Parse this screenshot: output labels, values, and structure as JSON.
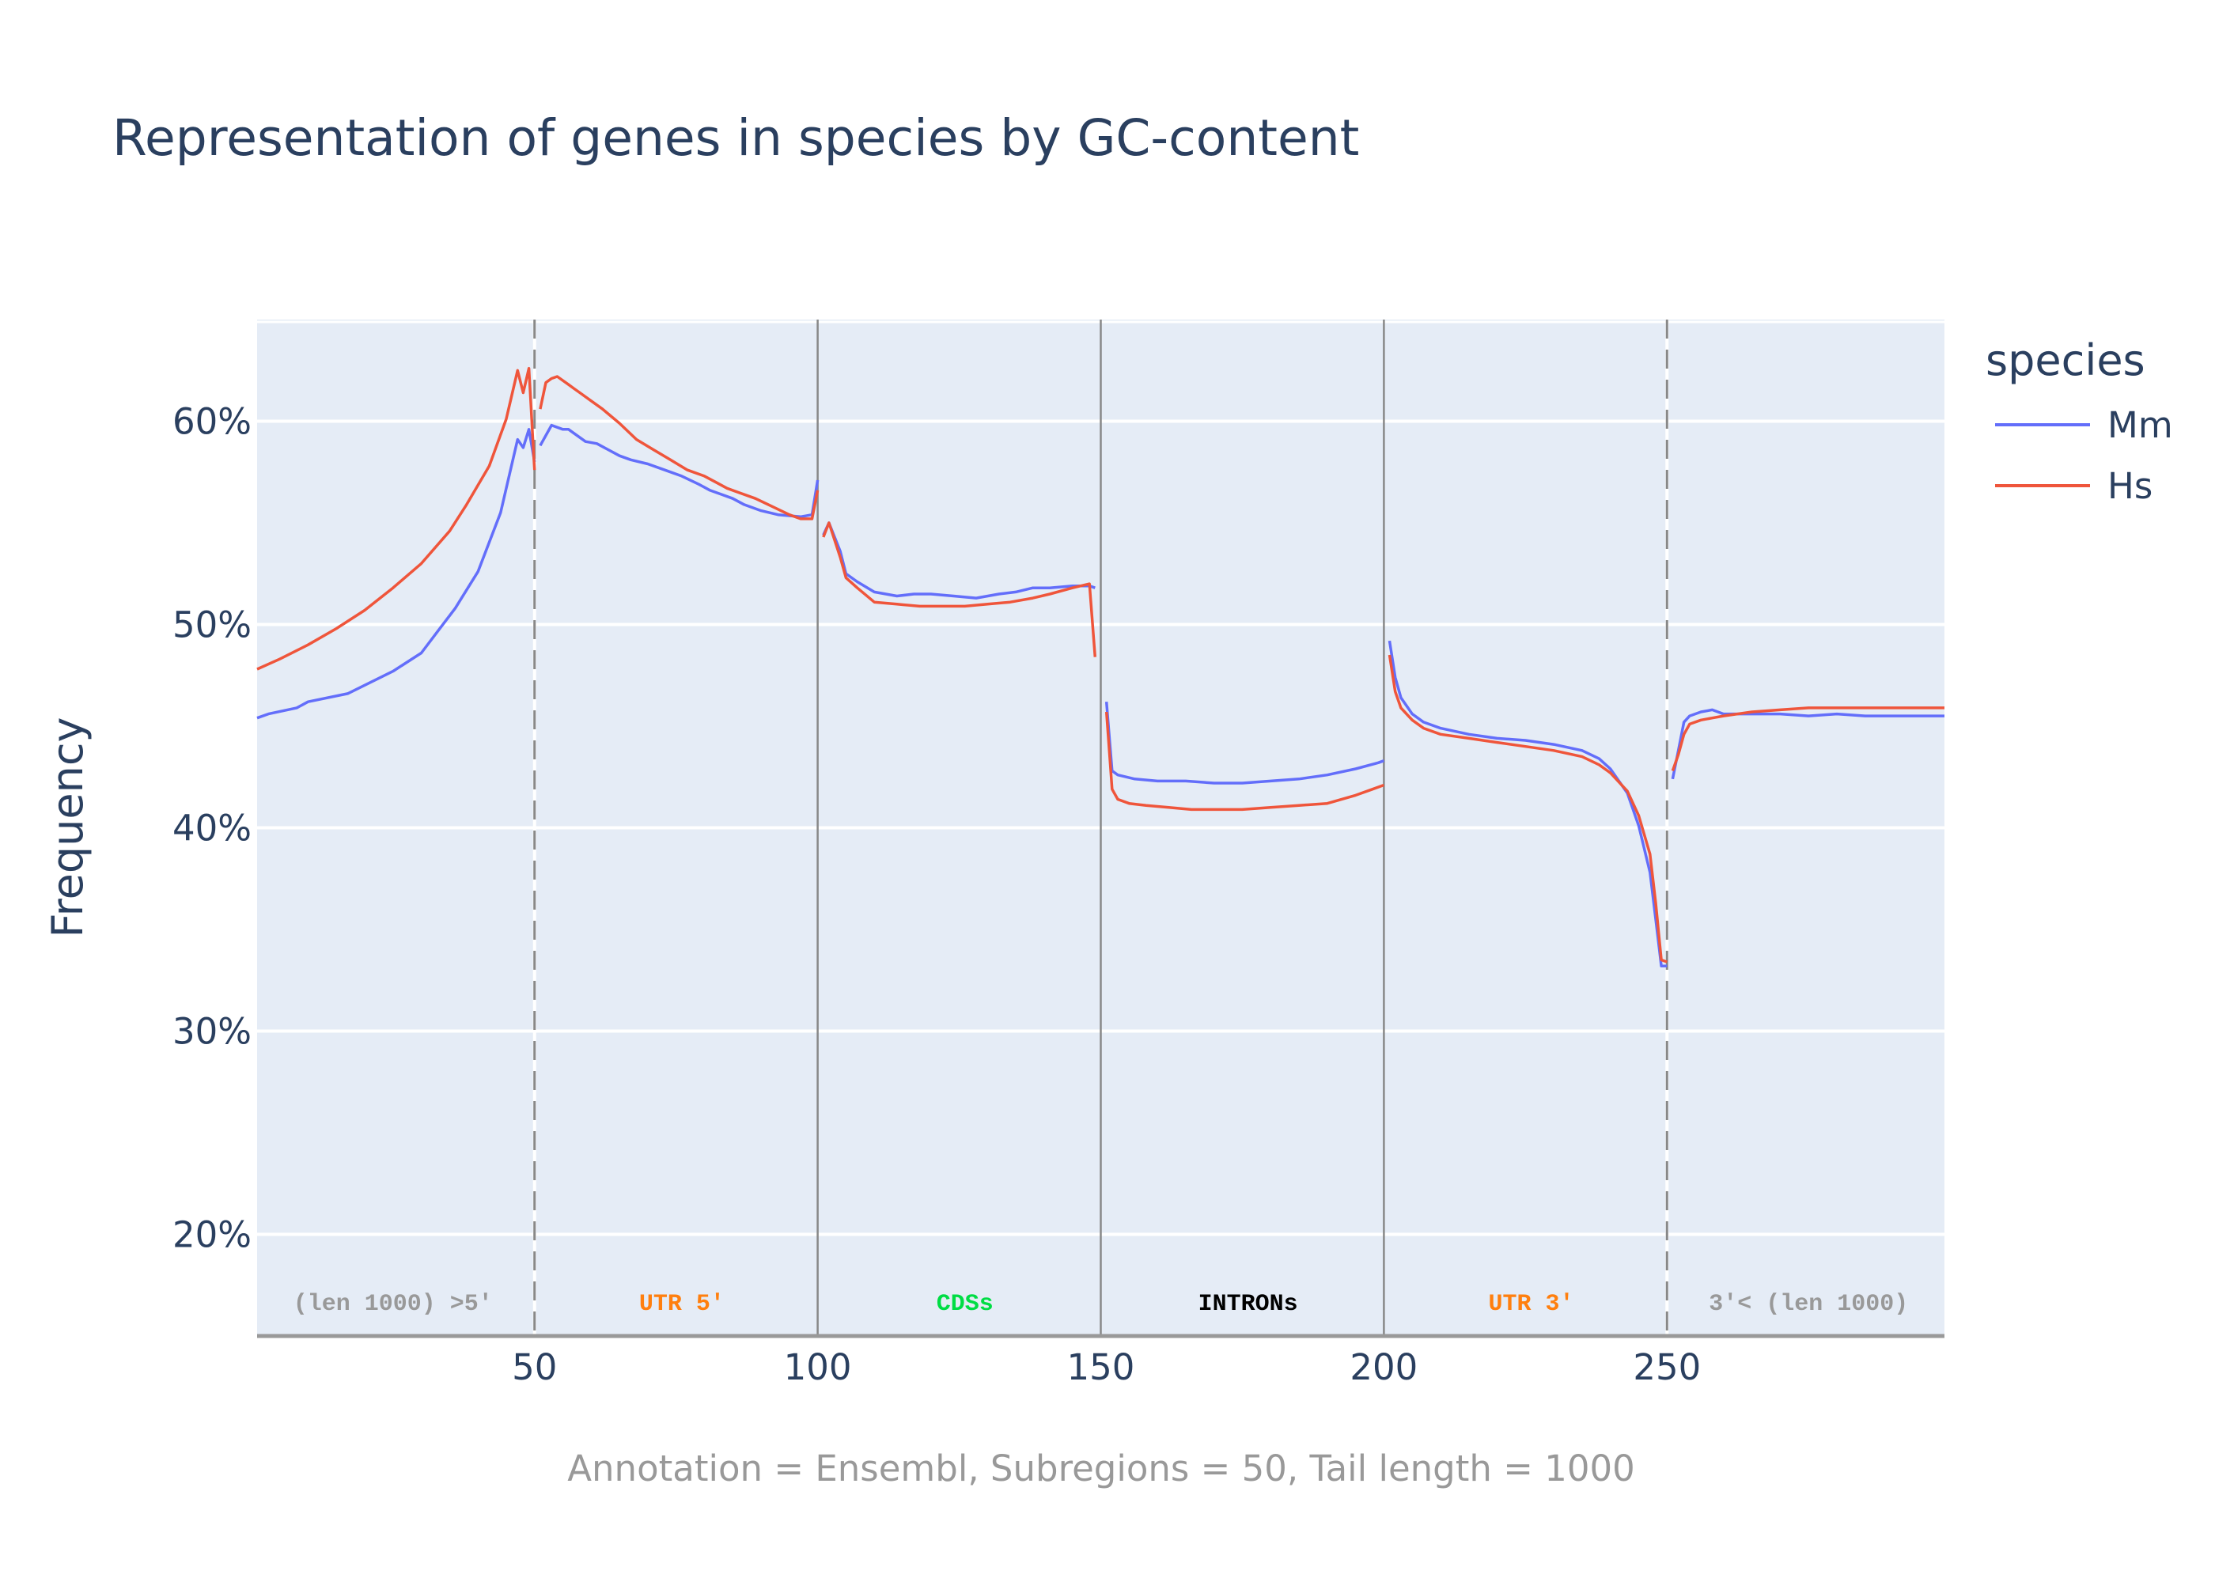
{
  "chart_data": {
    "type": "line",
    "title": "Representation of genes in species by GC-content",
    "xlabel": "Annotation = Ensembl, Subregions = 50, Tail length = 1000",
    "ylabel": "Frequency",
    "xlim": [
      1,
      299
    ],
    "ylim": [
      15,
      65
    ],
    "xticks": [
      50,
      100,
      150,
      200,
      250
    ],
    "xtick_labels": [
      "50",
      "100",
      "150",
      "200",
      "250"
    ],
    "yticks": [
      20,
      30,
      40,
      50,
      60
    ],
    "ytick_labels": [
      "20%",
      "30%",
      "40%",
      "50%",
      "60%"
    ],
    "grid": true,
    "legend": {
      "title": "species",
      "position": "top-right"
    },
    "boundaries": [
      {
        "x": 50,
        "style": "dashed"
      },
      {
        "x": 100,
        "style": "solid"
      },
      {
        "x": 150,
        "style": "solid"
      },
      {
        "x": 200,
        "style": "solid"
      },
      {
        "x": 250,
        "style": "dashed"
      }
    ],
    "regions": [
      {
        "label": "(len 1000) >5'",
        "x": 25,
        "color": "#999999"
      },
      {
        "label": "UTR 5'",
        "x": 76,
        "color": "#ff7f0e"
      },
      {
        "label": "CDSs",
        "x": 126,
        "color": "#00dd44"
      },
      {
        "label": "INTRONs",
        "x": 176,
        "color": "#000000"
      },
      {
        "label": "UTR 3'",
        "x": 226,
        "color": "#ff7f0e"
      },
      {
        "label": "3'< (len 1000)",
        "x": 275,
        "color": "#999999"
      }
    ],
    "series": [
      {
        "name": "Mm",
        "color": "#636efa",
        "segments": [
          {
            "x": [
              1,
              3,
              8,
              10,
              17,
              25,
              30,
              33,
              36,
              40,
              44,
              47,
              48,
              49,
              50
            ],
            "y": [
              45.4,
              45.6,
              45.9,
              46.2,
              46.6,
              47.7,
              48.6,
              49.7,
              50.8,
              52.6,
              55.5,
              59.1,
              58.7,
              59.6,
              58.0
            ]
          },
          {
            "x": [
              51,
              53,
              55,
              56,
              57,
              59,
              61,
              63,
              65,
              67,
              70,
              73,
              76,
              79,
              81,
              83,
              85,
              87,
              90,
              93,
              97,
              99,
              100
            ],
            "y": [
              58.8,
              59.8,
              59.6,
              59.6,
              59.4,
              59.0,
              58.9,
              58.6,
              58.3,
              58.1,
              57.9,
              57.6,
              57.3,
              56.9,
              56.6,
              56.4,
              56.2,
              55.9,
              55.6,
              55.4,
              55.3,
              55.4,
              57.1
            ]
          },
          {
            "x": [
              101,
              102,
              104,
              105,
              107,
              110,
              114,
              117,
              120,
              124,
              128,
              132,
              135,
              138,
              141,
              145,
              148,
              149
            ],
            "y": [
              54.4,
              55.0,
              53.6,
              52.5,
              52.1,
              51.6,
              51.4,
              51.5,
              51.5,
              51.4,
              51.3,
              51.5,
              51.6,
              51.8,
              51.8,
              51.9,
              51.9,
              51.8
            ]
          },
          {
            "x": [
              151,
              152,
              153,
              156,
              160,
              165,
              170,
              175,
              180,
              185,
              190,
              195,
              199,
              200
            ],
            "y": [
              46.2,
              42.8,
              42.6,
              42.4,
              42.3,
              42.3,
              42.2,
              42.2,
              42.3,
              42.4,
              42.6,
              42.9,
              43.2,
              43.3
            ]
          },
          {
            "x": [
              201,
              202,
              203,
              205,
              207,
              210,
              215,
              220,
              225,
              230,
              235,
              238,
              240,
              243,
              245,
              247,
              248,
              249,
              250
            ],
            "y": [
              49.2,
              47.4,
              46.4,
              45.6,
              45.2,
              44.9,
              44.6,
              44.4,
              44.3,
              44.1,
              43.8,
              43.4,
              42.9,
              41.7,
              40.1,
              37.8,
              35.5,
              33.2,
              33.2
            ]
          },
          {
            "x": [
              251,
              252,
              253,
              254,
              256,
              258,
              260,
              265,
              270,
              275,
              280,
              285,
              290,
              295,
              299
            ],
            "y": [
              42.4,
              43.8,
              45.2,
              45.5,
              45.7,
              45.8,
              45.6,
              45.6,
              45.6,
              45.5,
              45.6,
              45.5,
              45.5,
              45.5,
              45.5
            ]
          }
        ]
      },
      {
        "name": "Hs",
        "color": "#ef553b",
        "segments": [
          {
            "x": [
              1,
              5,
              10,
              15,
              20,
              25,
              30,
              35,
              38,
              42,
              45,
              47,
              48,
              49,
              50
            ],
            "y": [
              47.8,
              48.3,
              49.0,
              49.8,
              50.7,
              51.8,
              53.0,
              54.6,
              55.9,
              57.8,
              60.1,
              62.5,
              61.4,
              62.6,
              57.6
            ]
          },
          {
            "x": [
              51,
              52,
              53,
              54,
              56,
              57,
              58,
              60,
              62,
              65,
              68,
              71,
              74,
              77,
              80,
              82,
              84,
              86,
              89,
              92,
              95,
              97,
              99,
              100
            ],
            "y": [
              60.6,
              61.9,
              62.1,
              62.2,
              61.8,
              61.6,
              61.4,
              61.0,
              60.6,
              59.9,
              59.1,
              58.6,
              58.1,
              57.6,
              57.3,
              57.0,
              56.7,
              56.5,
              56.2,
              55.8,
              55.4,
              55.2,
              55.2,
              56.6
            ]
          },
          {
            "x": [
              101,
              102,
              104,
              105,
              107,
              110,
              114,
              118,
              122,
              126,
              130,
              134,
              138,
              141,
              145,
              148,
              149
            ],
            "y": [
              54.3,
              55.0,
              53.3,
              52.3,
              51.8,
              51.1,
              51.0,
              50.9,
              50.9,
              50.9,
              51.0,
              51.1,
              51.3,
              51.5,
              51.8,
              52.0,
              48.4
            ]
          },
          {
            "x": [
              151,
              152,
              153,
              155,
              158,
              162,
              166,
              170,
              175,
              180,
              185,
              190,
              195,
              198,
              200
            ],
            "y": [
              45.7,
              41.9,
              41.4,
              41.2,
              41.1,
              41.0,
              40.9,
              40.9,
              40.9,
              41.0,
              41.1,
              41.2,
              41.6,
              41.9,
              42.1
            ]
          },
          {
            "x": [
              201,
              202,
              203,
              205,
              207,
              210,
              215,
              220,
              225,
              230,
              235,
              238,
              240,
              243,
              245,
              247,
              248,
              249,
              250
            ],
            "y": [
              48.5,
              46.7,
              45.9,
              45.3,
              44.9,
              44.6,
              44.4,
              44.2,
              44.0,
              43.8,
              43.5,
              43.1,
              42.7,
              41.8,
              40.6,
              38.7,
              36.3,
              33.5,
              33.4
            ]
          },
          {
            "x": [
              251,
              252,
              253,
              254,
              256,
              258,
              260,
              265,
              270,
              275,
              280,
              285,
              290,
              295,
              299
            ],
            "y": [
              42.8,
              43.6,
              44.6,
              45.1,
              45.3,
              45.4,
              45.5,
              45.7,
              45.8,
              45.9,
              45.9,
              45.9,
              45.9,
              45.9,
              45.9
            ]
          }
        ]
      }
    ]
  }
}
